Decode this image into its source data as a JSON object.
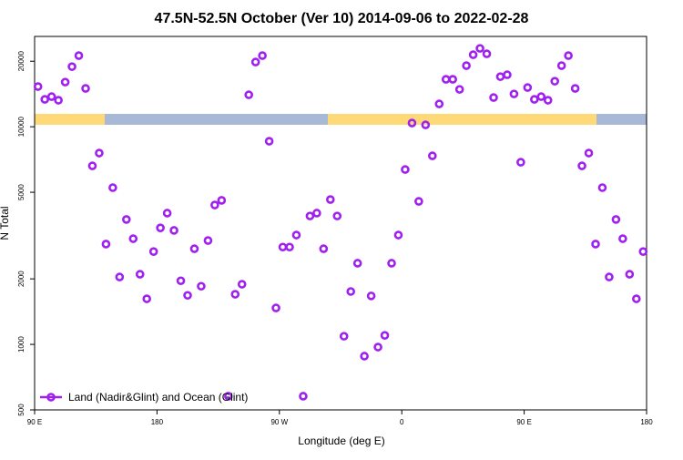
{
  "chart_data": {
    "type": "scatter",
    "title": "47.5N-52.5N October (Ver 10)   2014-09-06 to 2022-02-28",
    "x_label": "Longitude (deg E)",
    "y_label": "N Total",
    "log_y": true,
    "legend": "lower left",
    "xlim": [
      90,
      540
    ],
    "xticks": [
      {
        "value": 90,
        "label": "90 E"
      },
      180,
      {
        "value": 270,
        "label": "90 W"
      },
      {
        "value": 360,
        "label": "0"
      },
      {
        "value": 450,
        "label": "90 E"
      },
      {
        "value": 540,
        "label": "180"
      }
    ],
    "ylim": [
      500,
      26000
    ],
    "yticks": [
      500,
      1000,
      2000,
      5000,
      10000,
      20000
    ],
    "x": [
      92.5,
      97.5,
      102.5,
      107.5,
      112.5,
      117.5,
      122.5,
      127.5,
      132.5,
      137.5,
      142.5,
      147.5,
      152.5,
      157.5,
      162.5,
      167.5,
      172.5,
      177.5,
      182.5,
      187.5,
      192.5,
      197.5,
      202.5,
      207.5,
      212.5,
      217.5,
      222.5,
      227.5,
      232.5,
      237.5,
      242.5,
      247.5,
      252.5,
      257.5,
      262.5,
      267.5,
      272.5,
      277.5,
      282.5,
      287.5,
      292.5,
      297.5,
      302.5,
      307.5,
      312.5,
      317.5,
      322.5,
      327.5,
      332.5,
      337.5,
      342.5,
      347.5,
      352.5,
      357.5,
      362.5,
      367.5,
      372.5,
      377.5,
      382.5,
      387.5,
      392.5,
      397.5,
      402.5,
      407.5,
      412.5,
      417.5,
      422.5,
      427.5,
      432.5,
      437.5,
      442.5,
      447.5,
      452.5,
      457.5,
      462.5,
      467.5,
      472.5,
      477.5,
      482.5,
      487.5,
      492.5,
      497.5,
      502.5,
      507.5,
      512.5,
      517.5,
      522.5,
      527.5,
      532.5,
      537.5
    ],
    "series": [
      {
        "name": "Land (Nadir&Glint) and Ocean (Glint)",
        "color": "#a020f0",
        "values": [
          15300,
          13360,
          13750,
          13240,
          16040,
          18890,
          21220,
          15000,
          6610,
          7570,
          2890,
          5250,
          2040,
          3750,
          3060,
          2100,
          1620,
          2670,
          3430,
          4010,
          3340,
          1960,
          1680,
          2750,
          1850,
          3000,
          4370,
          4590,
          578,
          1700,
          1890,
          14020,
          19830,
          21220,
          8580,
          1470,
          2800,
          2800,
          3180,
          578,
          3890,
          4010,
          2750,
          4630,
          3890,
          1090,
          1750,
          2360,
          883,
          1670,
          972,
          1100,
          2360,
          3180,
          6360,
          10400,
          4540,
          10200,
          7350,
          12730,
          16520,
          16520,
          14850,
          19090,
          21420,
          22910,
          21630,
          13620,
          16990,
          17330,
          14150,
          6870,
          15140,
          13360,
          13750,
          13240,
          16190,
          19090,
          21220,
          15000,
          6610,
          7570,
          2890,
          5250,
          2040,
          3750,
          3060,
          2100,
          1620,
          2670
        ]
      }
    ]
  }
}
